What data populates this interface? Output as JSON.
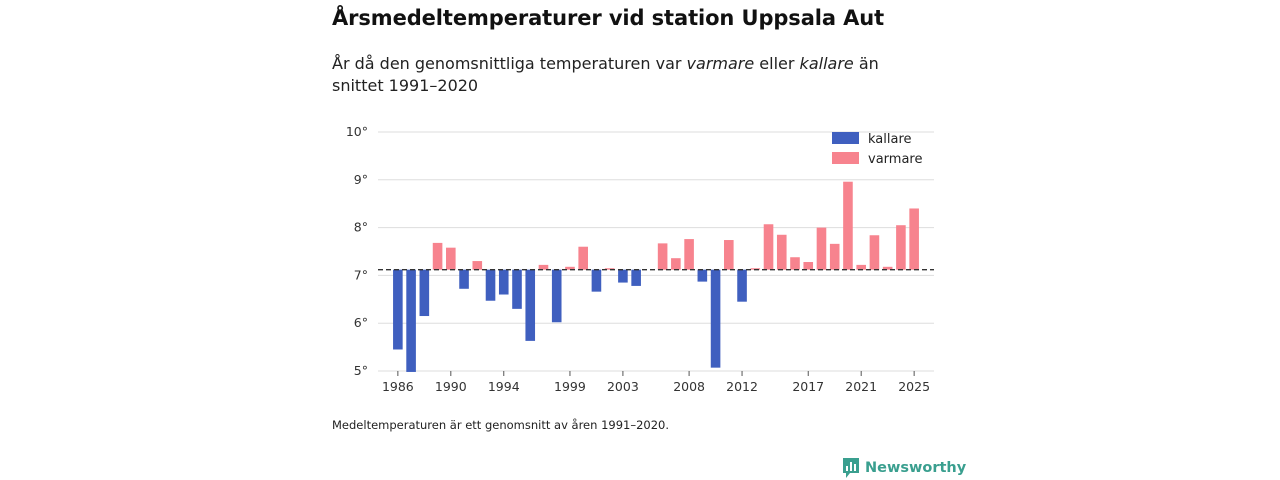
{
  "chart_data": {
    "type": "bar",
    "title": "Årsmedeltemperaturer vid station Uppsala Aut",
    "subtitle": {
      "prefix": "År då den genomsnittliga temperaturen var ",
      "warm_word": "varmare",
      "middle": " eller ",
      "cold_word": "kallare",
      "suffix": " än snittet 1991–2020"
    },
    "baseline": 7.12,
    "ylim": [
      5,
      10
    ],
    "y_ticks": [
      {
        "value": 5,
        "label": "5°"
      },
      {
        "value": 6,
        "label": "6°"
      },
      {
        "value": 7,
        "label": "7°"
      },
      {
        "value": 8,
        "label": "8°"
      },
      {
        "value": 9,
        "label": "9°"
      },
      {
        "value": 10,
        "label": "10°"
      }
    ],
    "x_ticks": [
      1986,
      1990,
      1994,
      1999,
      2003,
      2008,
      2012,
      2017,
      2021,
      2025
    ],
    "x_range": [
      1985,
      2026
    ],
    "years": [
      1986,
      1987,
      1988,
      1989,
      1990,
      1991,
      1992,
      1993,
      1994,
      1995,
      1996,
      1997,
      1998,
      1999,
      2000,
      2001,
      2002,
      2003,
      2004,
      2005,
      2006,
      2007,
      2008,
      2009,
      2010,
      2011,
      2012,
      2013,
      2014,
      2015,
      2016,
      2017,
      2018,
      2019,
      2020,
      2021,
      2022,
      2023,
      2024,
      2025
    ],
    "values": [
      5.45,
      4.98,
      6.15,
      7.68,
      7.58,
      6.72,
      7.3,
      6.47,
      6.6,
      6.3,
      5.63,
      7.22,
      6.02,
      7.18,
      7.6,
      6.66,
      7.15,
      6.85,
      6.78,
      7.12,
      7.67,
      7.36,
      7.76,
      6.87,
      5.07,
      7.74,
      6.45,
      7.15,
      8.07,
      7.85,
      7.38,
      7.28,
      8.0,
      7.66,
      8.96,
      7.22,
      7.84,
      7.18,
      8.05,
      8.4
    ],
    "series": [
      {
        "name": "kallare",
        "color": "#3f5fbf"
      },
      {
        "name": "varmare",
        "color": "#f7838e"
      }
    ],
    "legend_position": "top-right",
    "xlabel": "",
    "ylabel": ""
  },
  "footnote": "Medeltemperaturen är ett genomsnitt av åren 1991–2020.",
  "brand": {
    "name": "Newsworthy",
    "color": "#3a9f8f"
  }
}
